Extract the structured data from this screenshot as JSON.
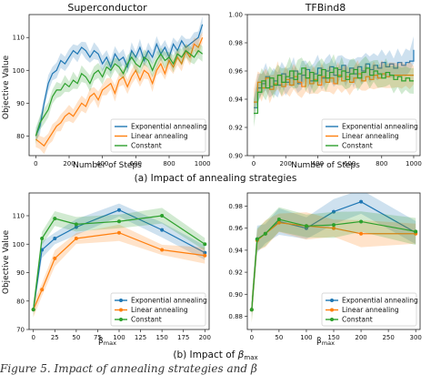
{
  "colors": {
    "exponential": "#1f77b4",
    "linear": "#ff7f0e",
    "constant": "#2ca02c"
  },
  "captions": {
    "a": "(a) Impact of annealing strategies",
    "b_prefix": "(b) Impact of ",
    "b_symbol": "β",
    "b_sub": "max"
  },
  "figure_caption": "Figure 5. Impact of annealing strategies and β",
  "chart_data": [
    {
      "id": "sc_steps",
      "type": "line",
      "title": "Superconductor",
      "xlabel": "Number of Steps",
      "ylabel": "Objective Value",
      "xlim": [
        -40,
        1040
      ],
      "ylim": [
        74,
        117
      ],
      "xticks": [
        0,
        200,
        400,
        600,
        800,
        1000
      ],
      "yticks": [
        80,
        90,
        100,
        110
      ],
      "x": [
        0,
        25,
        50,
        75,
        100,
        125,
        150,
        175,
        200,
        225,
        250,
        275,
        300,
        325,
        350,
        375,
        400,
        425,
        450,
        475,
        500,
        525,
        550,
        575,
        600,
        625,
        650,
        675,
        700,
        725,
        750,
        775,
        800,
        825,
        850,
        875,
        900,
        925,
        950,
        975,
        1000
      ],
      "legend": {
        "position": "lower-right"
      },
      "series": [
        {
          "name": "Exponential annealing",
          "color_key": "exponential",
          "values": [
            80,
            83,
            90,
            96,
            99,
            100,
            103,
            102,
            104,
            106,
            105,
            107,
            106,
            104,
            106,
            105,
            102,
            104,
            101,
            105,
            103,
            104,
            101,
            106,
            104,
            107,
            103,
            106,
            104,
            108,
            105,
            107,
            104,
            108,
            106,
            109,
            107,
            108,
            109,
            110,
            114
          ]
        },
        {
          "name": "Linear annealing",
          "color_key": "linear",
          "values": [
            79,
            78,
            77,
            79,
            81,
            83,
            84,
            86,
            87,
            86,
            88,
            90,
            89,
            92,
            93,
            91,
            94,
            95,
            96,
            93,
            97,
            98,
            95,
            98,
            100,
            97,
            100,
            99,
            96,
            100,
            102,
            99,
            103,
            101,
            104,
            102,
            106,
            104,
            108,
            107,
            110
          ]
        },
        {
          "name": "Constant",
          "color_key": "constant",
          "values": [
            80,
            84,
            86,
            88,
            92,
            94,
            94,
            96,
            95,
            97,
            96,
            99,
            98,
            96,
            99,
            100,
            98,
            101,
            100,
            102,
            101,
            99,
            102,
            104,
            102,
            101,
            104,
            103,
            100,
            103,
            105,
            103,
            104,
            102,
            105,
            104,
            106,
            105,
            104,
            106,
            105
          ]
        }
      ]
    },
    {
      "id": "tf_steps",
      "type": "line",
      "title": "TFBind8",
      "xlabel": "Number of Steps",
      "ylabel": "",
      "xlim": [
        -40,
        1040
      ],
      "ylim": [
        0.9,
        1.0
      ],
      "xticks": [
        0,
        200,
        400,
        600,
        800,
        1000
      ],
      "yticks": [
        0.9,
        0.92,
        0.94,
        0.96,
        0.98,
        1.0
      ],
      "x": [
        0,
        25,
        50,
        75,
        100,
        125,
        150,
        175,
        200,
        225,
        250,
        275,
        300,
        325,
        350,
        375,
        400,
        425,
        450,
        475,
        500,
        525,
        550,
        575,
        600,
        625,
        650,
        675,
        700,
        725,
        750,
        775,
        800,
        825,
        850,
        875,
        900,
        925,
        950,
        975,
        1000
      ],
      "legend": {
        "position": "lower-right"
      },
      "series": [
        {
          "name": "Exponential annealing",
          "color_key": "exponential",
          "values": [
            0.934,
            0.948,
            0.951,
            0.956,
            0.949,
            0.953,
            0.95,
            0.958,
            0.952,
            0.955,
            0.96,
            0.951,
            0.957,
            0.961,
            0.953,
            0.958,
            0.962,
            0.955,
            0.96,
            0.963,
            0.957,
            0.961,
            0.964,
            0.959,
            0.962,
            0.958,
            0.963,
            0.96,
            0.965,
            0.961,
            0.964,
            0.962,
            0.966,
            0.963,
            0.965,
            0.962,
            0.966,
            0.964,
            0.966,
            0.967,
            0.975
          ]
        },
        {
          "name": "Linear annealing",
          "color_key": "linear",
          "values": [
            0.938,
            0.952,
            0.948,
            0.955,
            0.947,
            0.951,
            0.957,
            0.949,
            0.954,
            0.95,
            0.956,
            0.952,
            0.949,
            0.955,
            0.951,
            0.954,
            0.95,
            0.956,
            0.952,
            0.955,
            0.951,
            0.957,
            0.953,
            0.956,
            0.952,
            0.955,
            0.958,
            0.953,
            0.956,
            0.954,
            0.957,
            0.955,
            0.958,
            0.956,
            0.957,
            0.957,
            0.957,
            0.957,
            0.957,
            0.957,
            0.957
          ]
        },
        {
          "name": "Constant",
          "color_key": "constant",
          "values": [
            0.93,
            0.945,
            0.953,
            0.948,
            0.955,
            0.95,
            0.957,
            0.952,
            0.956,
            0.96,
            0.954,
            0.958,
            0.962,
            0.955,
            0.959,
            0.953,
            0.957,
            0.961,
            0.955,
            0.959,
            0.962,
            0.956,
            0.96,
            0.954,
            0.958,
            0.961,
            0.955,
            0.959,
            0.962,
            0.957,
            0.96,
            0.958,
            0.955,
            0.959,
            0.957,
            0.954,
            0.956,
            0.953,
            0.955,
            0.953,
            0.953
          ]
        }
      ]
    },
    {
      "id": "sc_beta",
      "type": "line",
      "title": "",
      "xlabel_prefix": "β",
      "xlabel_sub": "max",
      "ylabel": "Objective Value",
      "xlim": [
        -5,
        205
      ],
      "ylim": [
        70,
        118
      ],
      "xticks": [
        0,
        25,
        50,
        75,
        100,
        125,
        150,
        175,
        200
      ],
      "yticks": [
        70,
        80,
        90,
        100,
        110
      ],
      "legend": {
        "position": "lower-right"
      },
      "series": [
        {
          "name": "Exponential annealing",
          "color_key": "exponential",
          "x": [
            0,
            10,
            25,
            50,
            100,
            150,
            200
          ],
          "values": [
            77,
            98,
            102,
            106,
            112,
            105,
            97
          ]
        },
        {
          "name": "Linear annealing",
          "color_key": "linear",
          "x": [
            0,
            10,
            25,
            50,
            100,
            150,
            200
          ],
          "values": [
            77,
            84,
            95,
            102,
            104,
            98,
            96
          ]
        },
        {
          "name": "Constant",
          "color_key": "constant",
          "x": [
            0,
            10,
            25,
            50,
            100,
            150,
            200
          ],
          "values": [
            77,
            102,
            109,
            107,
            108,
            110,
            100
          ]
        }
      ]
    },
    {
      "id": "tf_beta",
      "type": "line",
      "title": "",
      "xlabel_prefix": "β",
      "xlabel_sub": "max",
      "ylabel": "",
      "xlim": [
        -8,
        308
      ],
      "ylim": [
        0.868,
        0.992
      ],
      "xticks": [
        0,
        50,
        100,
        150,
        200,
        250,
        300
      ],
      "yticks": [
        0.88,
        0.9,
        0.92,
        0.94,
        0.96,
        0.98
      ],
      "legend": {
        "position": "lower-right"
      },
      "series": [
        {
          "name": "Exponential annealing",
          "color_key": "exponential",
          "x": [
            0,
            10,
            25,
            50,
            100,
            150,
            200,
            300
          ],
          "values": [
            0.886,
            0.95,
            0.955,
            0.966,
            0.96,
            0.975,
            0.984,
            0.956
          ]
        },
        {
          "name": "Linear annealing",
          "color_key": "linear",
          "x": [
            0,
            10,
            25,
            50,
            100,
            150,
            200,
            300
          ],
          "values": [
            0.886,
            0.949,
            0.955,
            0.965,
            0.962,
            0.96,
            0.955,
            0.955
          ]
        },
        {
          "name": "Constant",
          "color_key": "constant",
          "x": [
            0,
            10,
            25,
            50,
            100,
            150,
            200,
            300
          ],
          "values": [
            0.886,
            0.95,
            0.955,
            0.968,
            0.962,
            0.963,
            0.966,
            0.957
          ]
        }
      ]
    }
  ]
}
